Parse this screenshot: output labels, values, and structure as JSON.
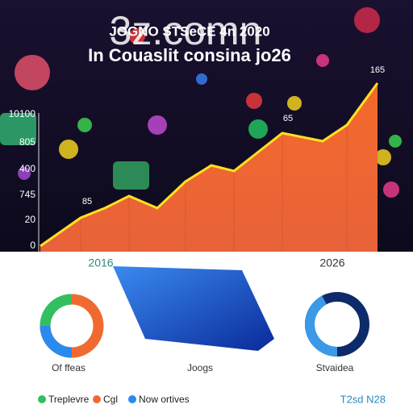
{
  "header": {
    "title": "JOGNO STSeCE 4n 2020",
    "overlay": "3z.comn",
    "subtitle": "In Couaslit consina jo26"
  },
  "chart": {
    "y_labels": [
      "10100",
      "805",
      "400",
      "745",
      "20",
      "0"
    ],
    "annotations": [
      "85",
      "65",
      "165"
    ],
    "x_labels": [
      "2016",
      "2026"
    ]
  },
  "donuts": [
    "Of ffeas",
    "Joogs",
    "Stvaidea"
  ],
  "legend": [
    "Treplevre",
    "Cgl",
    "Now ortives"
  ],
  "footer": "T2sd N28"
}
